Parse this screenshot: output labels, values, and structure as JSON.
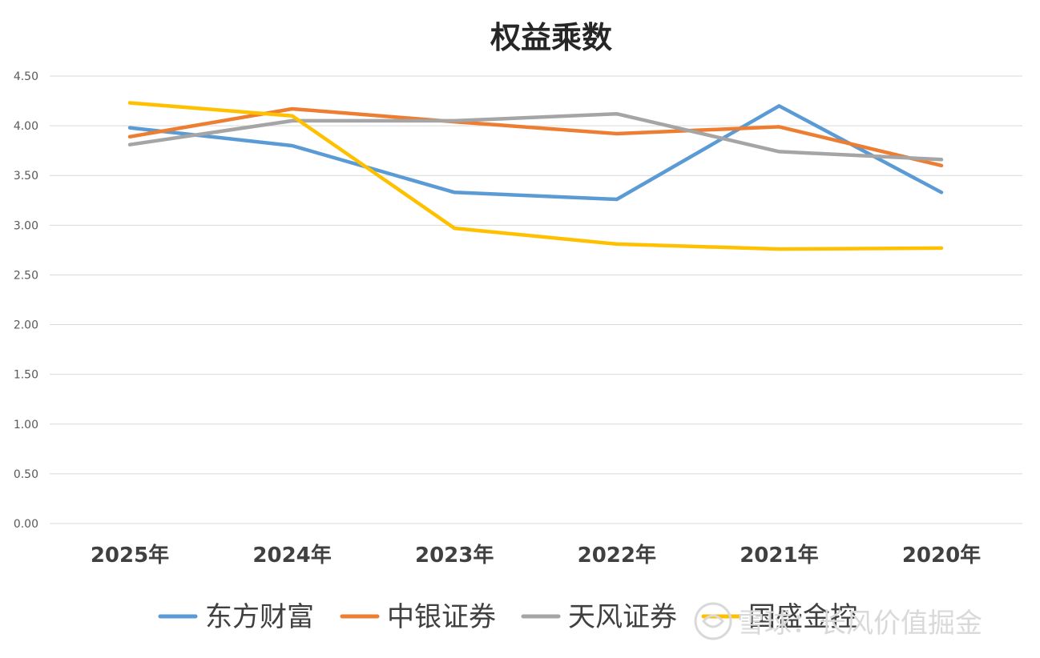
{
  "chart_data": {
    "type": "line",
    "title": "权益乘数",
    "xlabel": "",
    "ylabel": "",
    "categories": [
      "2025年",
      "2024年",
      "2023年",
      "2022年",
      "2021年",
      "2020年"
    ],
    "ylim": [
      0,
      4.5
    ],
    "yticks": [
      "0.00",
      "0.50",
      "1.00",
      "1.50",
      "2.00",
      "2.50",
      "3.00",
      "3.50",
      "4.00",
      "4.50"
    ],
    "grid": true,
    "legend_position": "bottom",
    "series": [
      {
        "name": "东方财富",
        "color": "#5B9BD5",
        "values": [
          3.98,
          3.8,
          3.33,
          3.26,
          4.2,
          3.33
        ]
      },
      {
        "name": "中银证券",
        "color": "#ED7D31",
        "values": [
          3.89,
          4.17,
          4.04,
          3.92,
          3.99,
          3.6
        ]
      },
      {
        "name": "天风证券",
        "color": "#A5A5A5",
        "values": [
          3.81,
          4.05,
          4.05,
          4.12,
          3.74,
          3.66
        ]
      },
      {
        "name": "国盛金控",
        "color": "#FFC000",
        "values": [
          4.23,
          4.1,
          2.97,
          2.81,
          2.76,
          2.77
        ]
      }
    ]
  },
  "watermark": {
    "text": "雪球：长风价值掘金",
    "icon": "snowball-logo-icon"
  }
}
